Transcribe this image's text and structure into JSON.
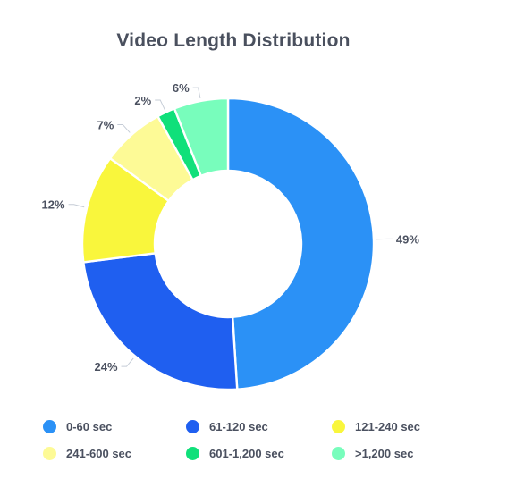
{
  "chart_data": {
    "type": "pie",
    "title": "Video Length Distribution",
    "categories": [
      "0-60 sec",
      "61-120 sec",
      "121-240 sec",
      "241-600 sec",
      "601-1,200 sec",
      ">1,200 sec"
    ],
    "values": [
      49,
      24,
      12,
      7,
      2,
      6
    ],
    "data_labels": [
      "49%",
      "24%",
      "12%",
      "7%",
      "2%",
      "6%"
    ],
    "colors": [
      "#2b91f6",
      "#1f5ff0",
      "#f9f63c",
      "#fdfa96",
      "#10e07a",
      "#78fdbc"
    ],
    "donut": true,
    "legend_position": "bottom"
  }
}
